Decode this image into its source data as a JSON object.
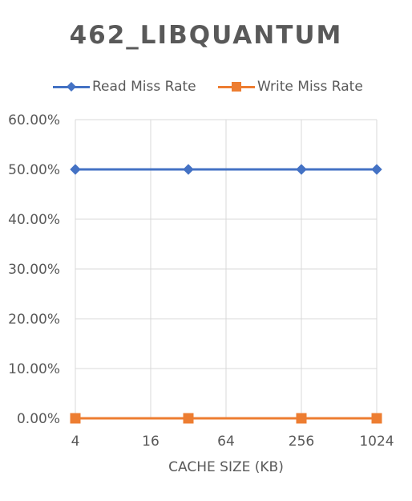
{
  "chart_data": {
    "type": "line",
    "title": "462_LIBQUANTUM",
    "xlabel": "CACHE SIZE (KB)",
    "ylabel": "",
    "x_scale": "log2",
    "x_ticks": [
      4,
      16,
      64,
      256,
      1024
    ],
    "x_tick_labels": [
      "4",
      "16",
      "64",
      "256",
      "1024"
    ],
    "ylim": [
      0,
      0.6
    ],
    "y_ticks": [
      0,
      0.1,
      0.2,
      0.3,
      0.4,
      0.5,
      0.6
    ],
    "y_tick_labels": [
      "0.00%",
      "10.00%",
      "20.00%",
      "30.00%",
      "40.00%",
      "50.00%",
      "60.00%"
    ],
    "grid": "vertical-and-horizontal",
    "legend_position": "top",
    "series": [
      {
        "name": "Read Miss Rate",
        "color": "#4472C4",
        "marker": "diamond",
        "x": [
          4,
          32,
          256,
          1024
        ],
        "values": [
          0.5,
          0.5,
          0.5,
          0.5
        ]
      },
      {
        "name": "Write Miss Rate",
        "color": "#ED7D31",
        "marker": "square",
        "x": [
          4,
          32,
          256,
          1024
        ],
        "values": [
          0,
          0,
          0,
          0
        ]
      }
    ]
  }
}
